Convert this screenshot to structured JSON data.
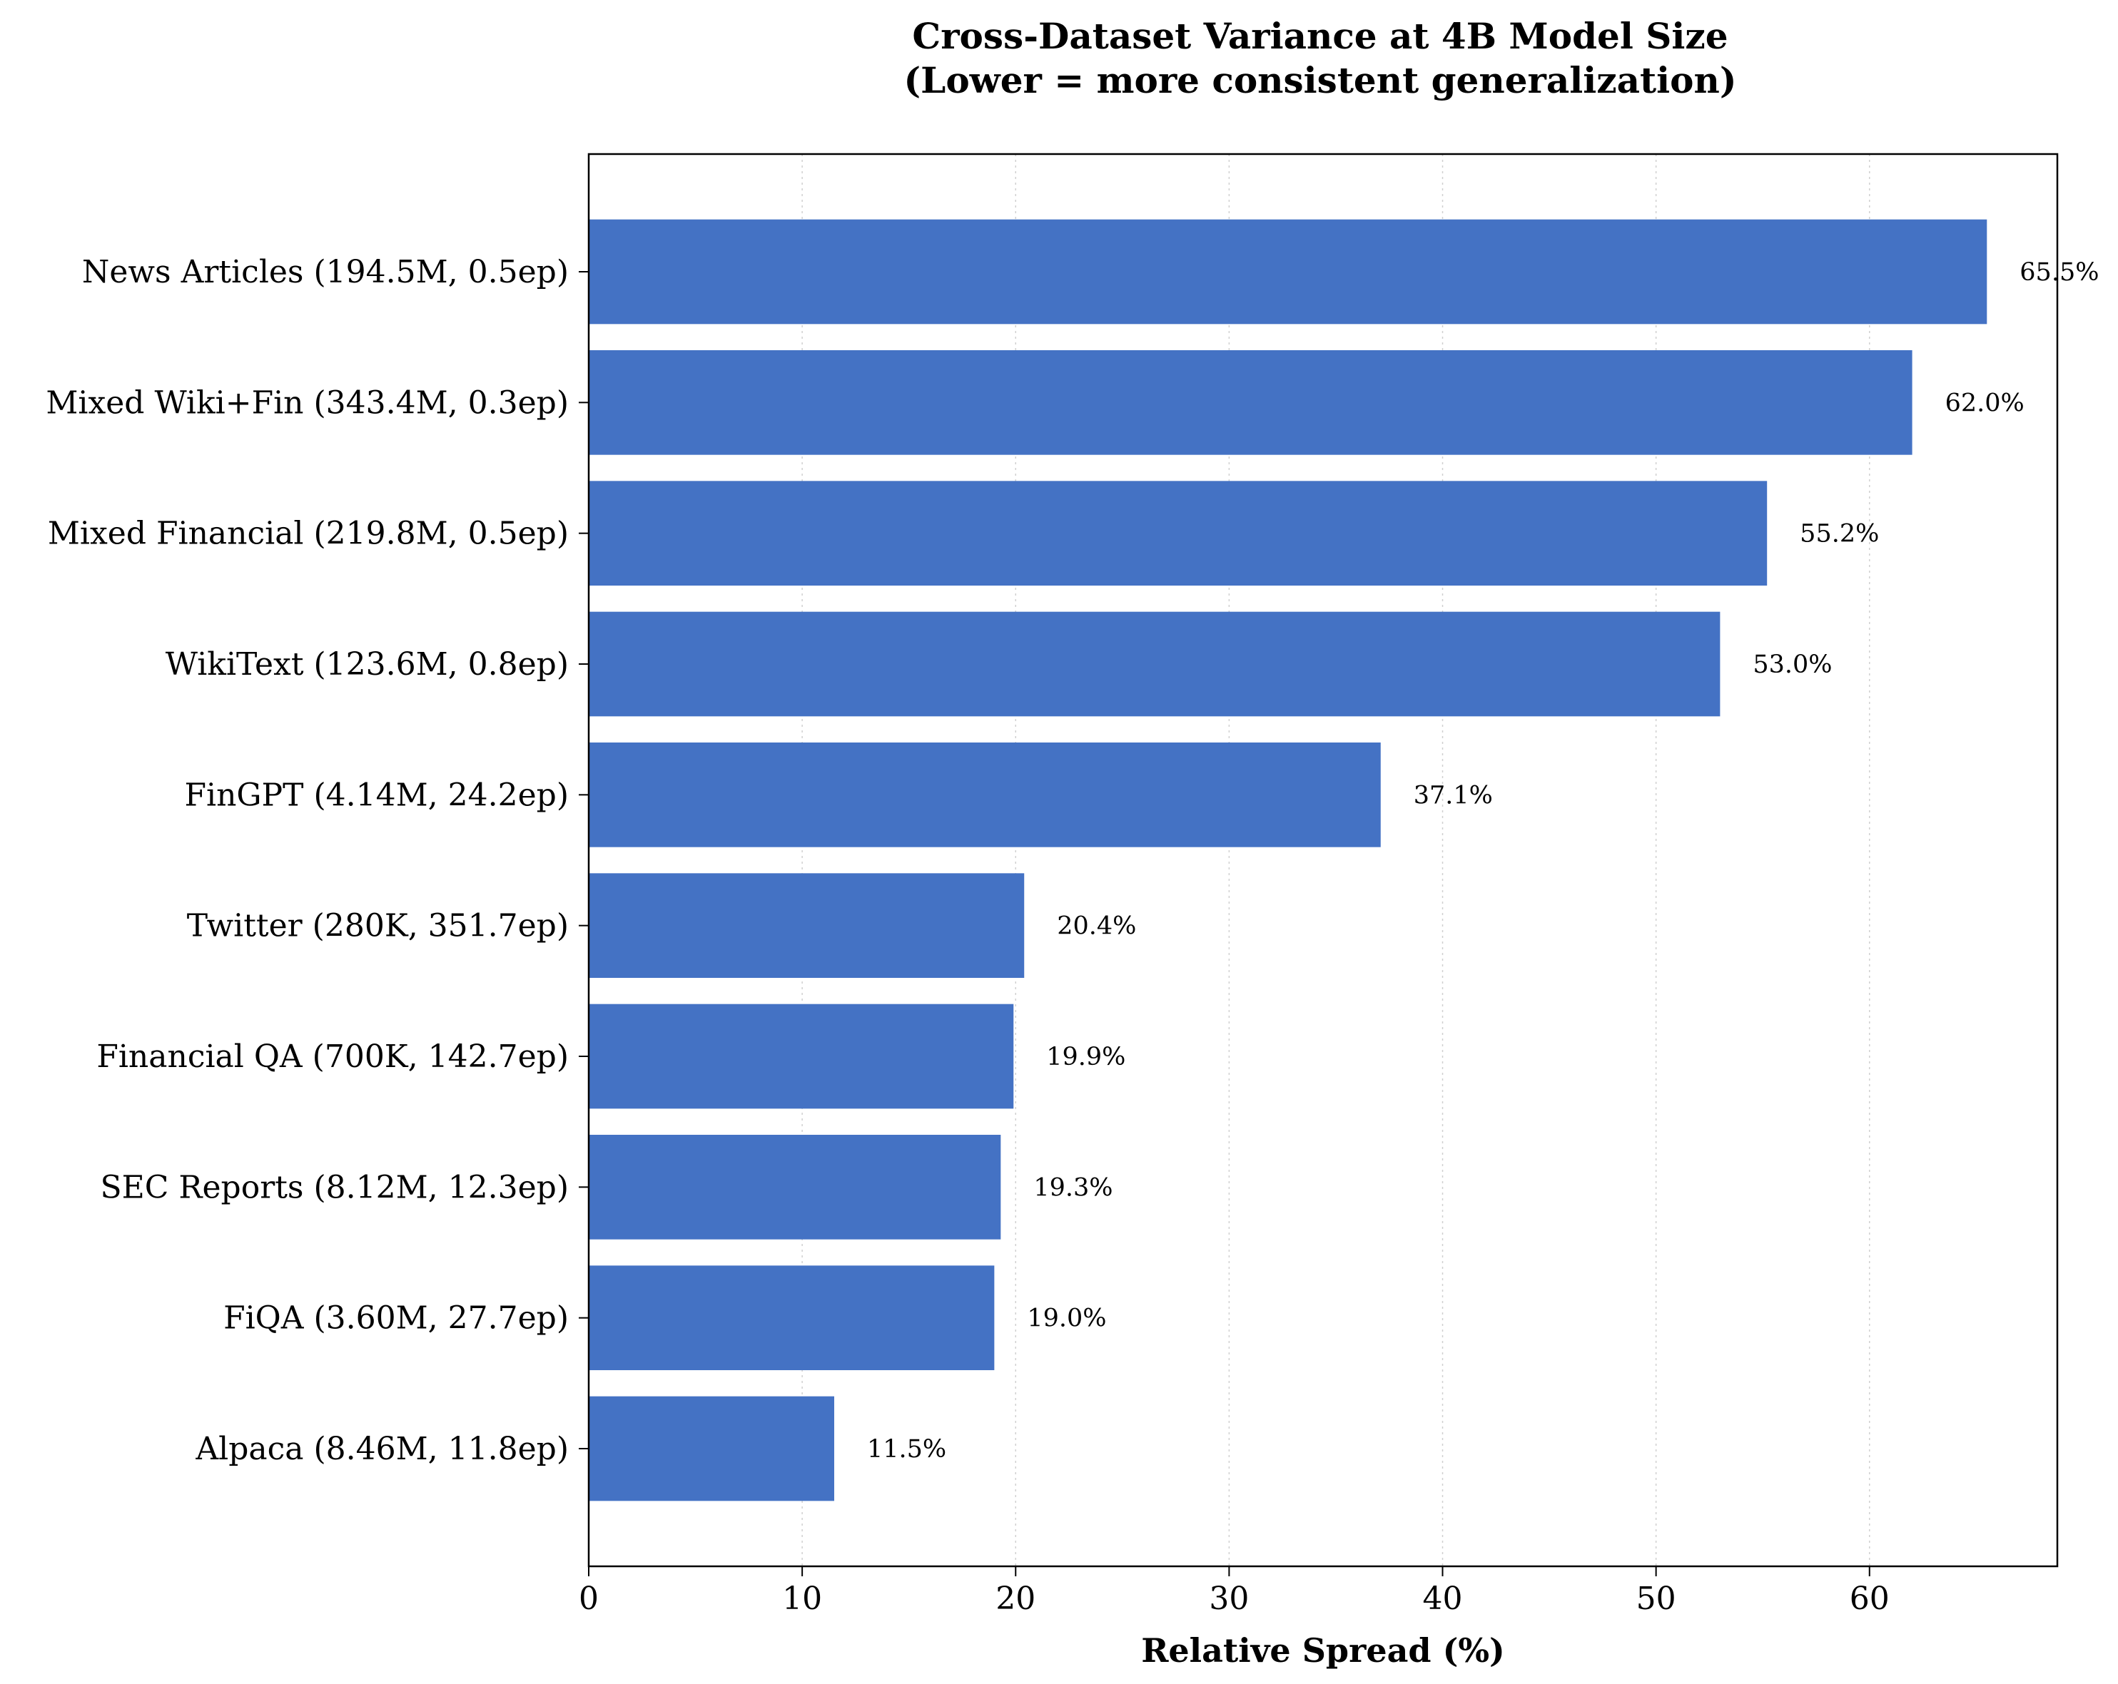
{
  "chart_data": {
    "type": "bar",
    "orientation": "horizontal",
    "title": "Cross-Dataset Variance at 4B Model Size",
    "subtitle": "(Lower = more consistent generalization)",
    "xlabel": "Relative Spread (%)",
    "ylabel": "",
    "xlim": [
      0,
      68.8
    ],
    "xticks": [
      0,
      10,
      20,
      30,
      40,
      50,
      60
    ],
    "grid": "x, dotted",
    "bar_color": "#4472c4",
    "categories": [
      "News Articles (194.5M, 0.5ep)",
      "Mixed Wiki+Fin (343.4M, 0.3ep)",
      "Mixed Financial (219.8M, 0.5ep)",
      "WikiText (123.6M, 0.8ep)",
      "FinGPT (4.14M, 24.2ep)",
      "Twitter (280K, 351.7ep)",
      "Financial QA (700K, 142.7ep)",
      "SEC Reports (8.12M, 12.3ep)",
      "FiQA (3.60M, 27.7ep)",
      "Alpaca (8.46M, 11.8ep)"
    ],
    "values": [
      65.5,
      62.0,
      55.2,
      53.0,
      37.1,
      20.4,
      19.9,
      19.3,
      19.0,
      11.5
    ],
    "value_labels": [
      "65.5%",
      "62.0%",
      "55.2%",
      "53.0%",
      "37.1%",
      "20.4%",
      "19.9%",
      "19.3%",
      "19.0%",
      "11.5%"
    ]
  }
}
